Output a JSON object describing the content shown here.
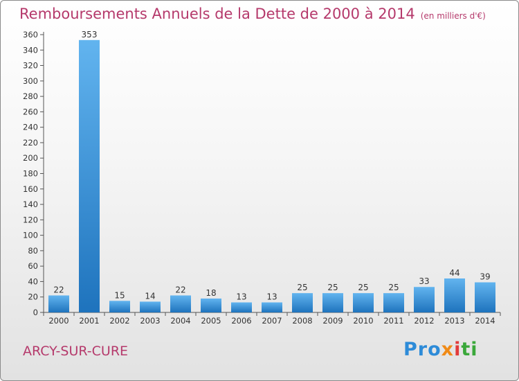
{
  "header": {
    "title": "Remboursements Annuels de la Dette de 2000 à 2014",
    "unit": "(en milliers d'€)"
  },
  "footer": {
    "commune": "ARCY-SUR-CURE",
    "logo": [
      "Pro",
      "x",
      "i",
      "ti"
    ]
  },
  "colors": {
    "title": "#b5396b",
    "bar_light": "#62b4ef",
    "bar_dark": "#1e73bd"
  },
  "chart_data": {
    "type": "bar",
    "title": "Remboursements Annuels de la Dette de 2000 à 2014",
    "ylabel": "en milliers d'€",
    "xlabel": "",
    "categories": [
      "2000",
      "2001",
      "2002",
      "2003",
      "2004",
      "2005",
      "2006",
      "2007",
      "2008",
      "2009",
      "2010",
      "2011",
      "2012",
      "2013",
      "2014"
    ],
    "values": [
      22,
      353,
      15,
      14,
      22,
      18,
      13,
      13,
      25,
      25,
      25,
      25,
      33,
      44,
      39
    ],
    "ylim": [
      0,
      360
    ],
    "yticks": [
      0,
      20,
      40,
      60,
      80,
      100,
      120,
      140,
      160,
      180,
      200,
      220,
      240,
      260,
      280,
      300,
      320,
      340,
      360
    ],
    "grid": false,
    "legend": "none"
  }
}
